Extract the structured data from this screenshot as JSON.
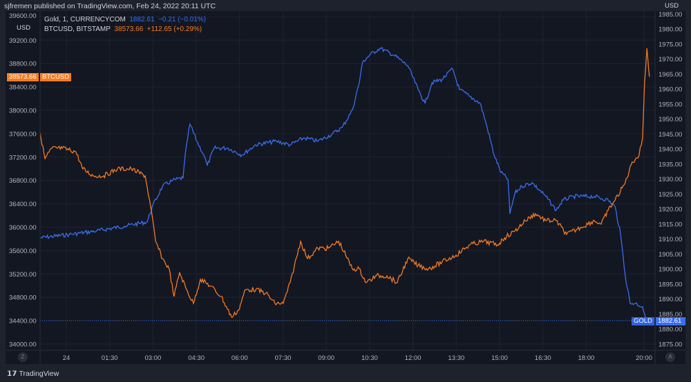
{
  "header": {
    "text": "sjfremen published on TradingView.com, Feb 24, 2022 20:11 UTC"
  },
  "legend": {
    "gold": {
      "name": "Gold, 1, CURRENCYCOM",
      "price": "1882.61",
      "change": "−0.21 (−0.01%)"
    },
    "btc": {
      "name": "BTCUSD, BITSTAMP",
      "price": "38573.66",
      "change": "+112.65 (+0.29%)"
    }
  },
  "left_axis": {
    "unit": "USD",
    "ticks": [
      "39600.00",
      "39200.00",
      "38800.00",
      "38400.00",
      "38000.00",
      "37600.00",
      "37200.00",
      "36800.00",
      "36400.00",
      "36000.00",
      "35600.00",
      "35200.00",
      "34800.00",
      "34400.00",
      "34000.00"
    ]
  },
  "right_axis": {
    "unit": "USD",
    "ticks": [
      "1985.00",
      "1980.00",
      "1975.00",
      "1970.00",
      "1965.00",
      "1960.00",
      "1955.00",
      "1950.00",
      "1945.00",
      "1940.00",
      "1935.00",
      "1930.00",
      "1925.00",
      "1920.00",
      "1915.00",
      "1910.00",
      "1905.00",
      "1900.00",
      "1895.00",
      "1890.00",
      "1885.00",
      "1880.00",
      "1875.00"
    ]
  },
  "time_axis": {
    "ticks": [
      "24",
      "01:30",
      "03:00",
      "04:30",
      "06:00",
      "07:30",
      "09:00",
      "10:30",
      "12:00",
      "13:30",
      "15:00",
      "16:30",
      "18:00",
      "20:00"
    ]
  },
  "tags": {
    "btc_price": "38573.66",
    "btc_label": "BTCUSD",
    "gold_label": "GOLD",
    "gold_price": "1882.61"
  },
  "buttons": {
    "zoom": "Z",
    "auto": "A"
  },
  "footer": {
    "brand": "TradingView"
  },
  "colors": {
    "gold": "#3a6ff0",
    "btc": "#f57c1f",
    "bg": "#131722"
  },
  "chart_data": {
    "type": "line",
    "x_unit": "hours since Feb 24 00:00 UTC",
    "series": [
      {
        "name": "Gold, 1, CURRENCYCOM",
        "axis": "right",
        "ylim": [
          1873,
          1987
        ],
        "x": [
          -0.91,
          0.1,
          1.05,
          2.01,
          2.8,
          2.97,
          3.33,
          3.68,
          4.04,
          4.16,
          4.28,
          4.52,
          4.76,
          4.88,
          5.12,
          5.6,
          6.08,
          6.56,
          7.27,
          7.75,
          8.23,
          8.71,
          9.19,
          9.55,
          9.9,
          10.14,
          10.26,
          10.5,
          10.86,
          11.34,
          11.82,
          12.18,
          12.42,
          12.66,
          13.01,
          13.37,
          13.61,
          13.97,
          14.33,
          14.57,
          14.81,
          15.05,
          15.29,
          15.36,
          15.53,
          15.77,
          16.12,
          16.6,
          16.96,
          17.2,
          17.56,
          18.28,
          18.76,
          19.0,
          19.19,
          19.35,
          19.52,
          19.71,
          19.95,
          20.07
        ],
        "y": [
          1910.4,
          1911.5,
          1912.7,
          1914.3,
          1915.7,
          1920.7,
          1927.6,
          1929.5,
          1930.4,
          1941.4,
          1948.3,
          1942.6,
          1938.0,
          1934.5,
          1940.3,
          1940.3,
          1938.0,
          1941.4,
          1942.6,
          1941.4,
          1943.7,
          1942.6,
          1944.9,
          1947.2,
          1952.9,
          1962.1,
          1969.0,
          1971.3,
          1973.6,
          1971.3,
          1967.8,
          1959.8,
          1955.2,
          1962.1,
          1963.2,
          1966.7,
          1959.8,
          1957.5,
          1955.2,
          1947.2,
          1938.0,
          1932.2,
          1929.9,
          1918.4,
          1925.3,
          1927.6,
          1928.8,
          1924.2,
          1919.6,
          1923.0,
          1924.2,
          1924.2,
          1923.0,
          1920.7,
          1911.5,
          1897.8,
          1888.6,
          1888.6,
          1887.4,
          1882.61
        ]
      },
      {
        "name": "BTCUSD, BITSTAMP",
        "axis": "left",
        "ylim": [
          33900,
          39800
        ],
        "x": [
          -0.91,
          -0.74,
          -0.5,
          -0.14,
          0.33,
          0.57,
          0.93,
          1.29,
          1.77,
          2.25,
          2.73,
          2.92,
          3.09,
          3.33,
          3.56,
          3.73,
          3.92,
          4.16,
          4.4,
          4.64,
          5.0,
          5.36,
          5.72,
          5.96,
          6.2,
          6.56,
          6.91,
          7.22,
          7.51,
          7.75,
          8.11,
          8.35,
          8.71,
          9.07,
          9.43,
          9.67,
          9.9,
          10.14,
          10.38,
          10.74,
          11.1,
          11.46,
          11.82,
          12.18,
          12.54,
          13.01,
          13.49,
          13.97,
          14.45,
          14.93,
          15.17,
          15.53,
          15.89,
          16.24,
          16.6,
          16.96,
          17.32,
          17.8,
          18.28,
          18.52,
          18.76,
          19.0,
          19.35,
          19.59,
          19.83,
          19.95,
          20.02,
          20.1,
          20.19
        ],
        "y": [
          37623,
          37174,
          37351,
          37351,
          37292,
          36997,
          36879,
          36879,
          36997,
          36997,
          36879,
          36348,
          35758,
          35463,
          35286,
          34814,
          35227,
          34932,
          34696,
          35109,
          34991,
          34814,
          34460,
          34578,
          34932,
          34932,
          34873,
          34696,
          34696,
          35050,
          35758,
          35463,
          35640,
          35640,
          35758,
          35522,
          35286,
          35286,
          35050,
          35168,
          35168,
          35050,
          35463,
          35345,
          35286,
          35404,
          35522,
          35699,
          35758,
          35699,
          35817,
          35935,
          36112,
          36230,
          36112,
          36112,
          35876,
          35994,
          36112,
          36053,
          36289,
          36466,
          36761,
          37115,
          37233,
          37528,
          38472,
          39062,
          38573.66
        ]
      }
    ]
  }
}
